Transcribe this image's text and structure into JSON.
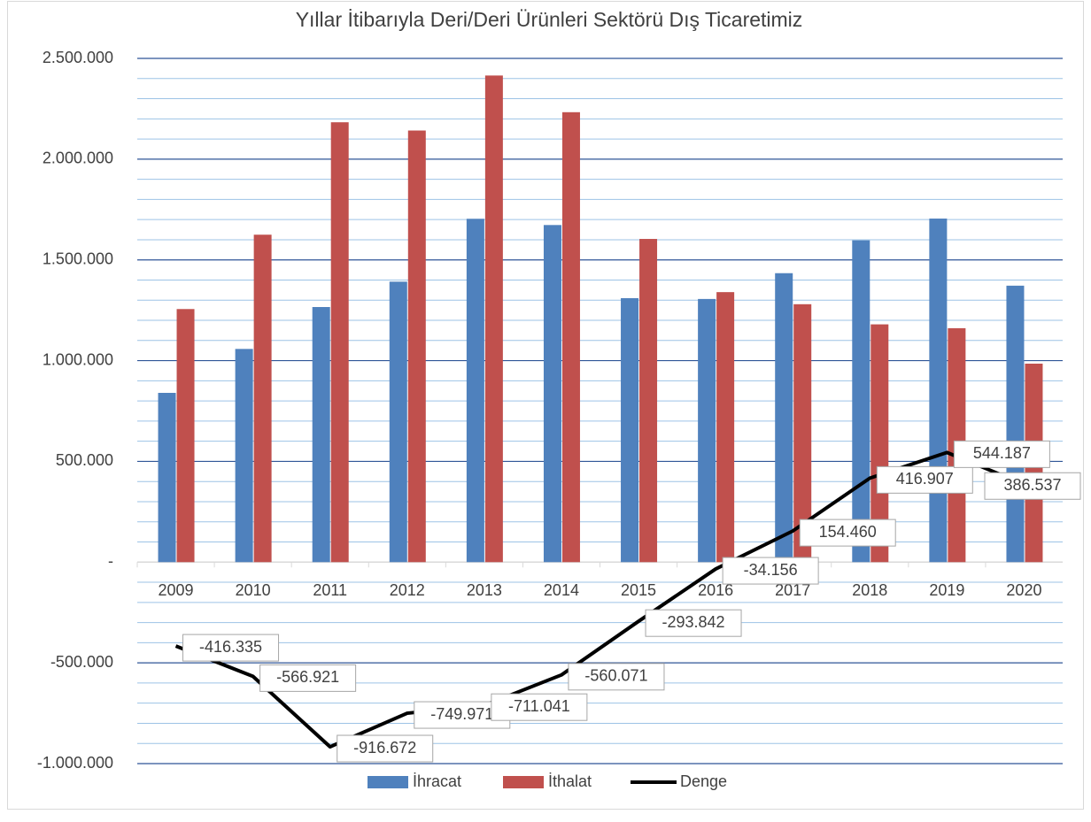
{
  "chart_data": {
    "type": "bar_line",
    "title": "Yıllar İtibarıyla Deri/Deri Ürünleri Sektörü Dış Ticaretimiz",
    "categories": [
      "2009",
      "2010",
      "2011",
      "2012",
      "2013",
      "2014",
      "2015",
      "2016",
      "2017",
      "2018",
      "2019",
      "2020"
    ],
    "series": [
      {
        "name": "İhracat",
        "type": "bar",
        "color": "#4f81bd",
        "values": [
          840000,
          1058000,
          1266000,
          1392000,
          1704000,
          1673000,
          1310000,
          1306000,
          1434000,
          1597000,
          1705000,
          1372000
        ]
      },
      {
        "name": "İthalat",
        "type": "bar",
        "color": "#c0504d",
        "values": [
          1256000,
          1625000,
          2183000,
          2142000,
          2415000,
          2233000,
          1604000,
          1340000,
          1280000,
          1180000,
          1161000,
          985000
        ]
      },
      {
        "name": "Denge",
        "type": "line",
        "color": "#000000",
        "values": [
          -416335,
          -566921,
          -916672,
          -749971,
          -711041,
          -560071,
          -293842,
          -34156,
          154460,
          416907,
          544187,
          386537
        ],
        "value_labels": [
          "-416.335",
          "-566.921",
          "-916.672",
          "-749.971",
          "-711.041",
          "-560.071",
          "-293.842",
          "-34.156",
          "154.460",
          "416.907",
          "544.187",
          "386.537"
        ]
      }
    ],
    "ylim": [
      -1000000,
      2500000
    ],
    "yticks": [
      {
        "value": -1000000,
        "label": "-1.000.000"
      },
      {
        "value": -500000,
        "label": "-500.000"
      },
      {
        "value": 0,
        "label": "-"
      },
      {
        "value": 500000,
        "label": "500.000"
      },
      {
        "value": 1000000,
        "label": "1.000.000"
      },
      {
        "value": 1500000,
        "label": "1.500.000"
      },
      {
        "value": 2000000,
        "label": "2.000.000"
      },
      {
        "value": 2500000,
        "label": "2.500.000"
      }
    ],
    "y_minor_ticks": [
      -900000,
      -800000,
      -700000,
      -600000,
      -400000,
      -300000,
      -200000,
      -100000,
      100000,
      200000,
      300000,
      400000,
      600000,
      700000,
      800000,
      900000,
      1100000,
      1200000,
      1300000,
      1400000,
      1600000,
      1700000,
      1800000,
      1900000,
      2100000,
      2200000,
      2300000,
      2400000
    ],
    "grid": true,
    "legend": "bottom"
  }
}
